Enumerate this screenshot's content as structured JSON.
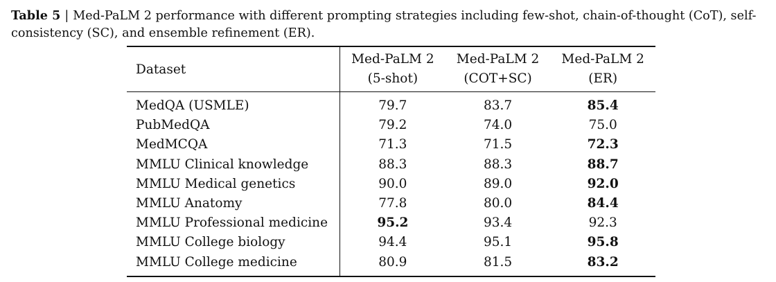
{
  "caption": {
    "label": "Table 5",
    "separator": "|",
    "text": "Med-PaLM 2 performance with different prompting strategies including few-shot, chain-of-thought (CoT), self-consistency (SC), and ensemble refinement (ER)."
  },
  "table": {
    "header": {
      "dataset": "Dataset",
      "columns": [
        {
          "line1": "Med-PaLM 2",
          "line2": "(5-shot)"
        },
        {
          "line1": "Med-PaLM 2",
          "line2": "(COT+SC)"
        },
        {
          "line1": "Med-PaLM 2",
          "line2": "(ER)"
        }
      ]
    },
    "rows": [
      {
        "dataset": "MedQA (USMLE)",
        "values": [
          "79.7",
          "83.7",
          "85.4"
        ],
        "best": 2
      },
      {
        "dataset": "PubMedQA",
        "values": [
          "79.2",
          "74.0",
          "75.0"
        ],
        "best": -1
      },
      {
        "dataset": "MedMCQA",
        "values": [
          "71.3",
          "71.5",
          "72.3"
        ],
        "best": 2
      },
      {
        "dataset": "MMLU Clinical knowledge",
        "values": [
          "88.3",
          "88.3",
          "88.7"
        ],
        "best": 2
      },
      {
        "dataset": "MMLU Medical genetics",
        "values": [
          "90.0",
          "89.0",
          "92.0"
        ],
        "best": 2
      },
      {
        "dataset": "MMLU Anatomy",
        "values": [
          "77.8",
          "80.0",
          "84.4"
        ],
        "best": 2
      },
      {
        "dataset": "MMLU Professional medicine",
        "values": [
          "95.2",
          "93.4",
          "92.3"
        ],
        "best": 0
      },
      {
        "dataset": "MMLU College biology",
        "values": [
          "94.4",
          "95.1",
          "95.8"
        ],
        "best": 2
      },
      {
        "dataset": "MMLU College medicine",
        "values": [
          "80.9",
          "81.5",
          "83.2"
        ],
        "best": 2
      }
    ]
  }
}
